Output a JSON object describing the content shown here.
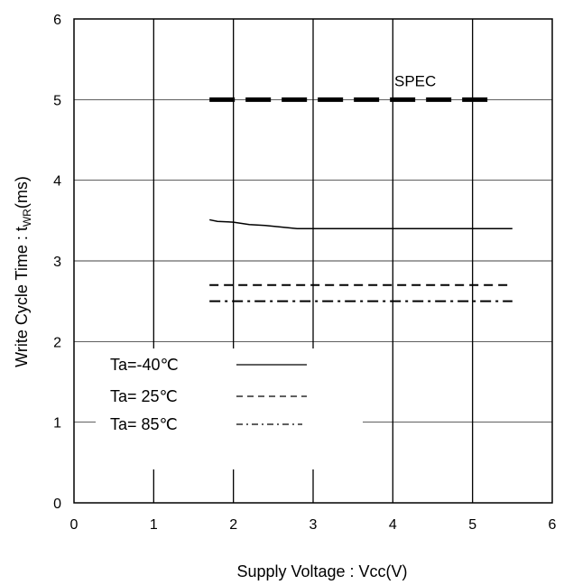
{
  "chart_data": {
    "type": "line",
    "xlabel": "Supply Voltage : Vcc(V)",
    "ylabel_main": "Write Cycle Time : t",
    "ylabel_sub": "WR",
    "ylabel_unit": "(ms)",
    "xlim": [
      0,
      6
    ],
    "ylim": [
      0,
      6
    ],
    "x_ticks": [
      "0",
      "1",
      "2",
      "3",
      "4",
      "5",
      "6"
    ],
    "y_ticks": [
      "0",
      "1",
      "2",
      "3",
      "4",
      "5",
      "6"
    ],
    "grid": true,
    "legend_position": "lower-left",
    "series": [
      {
        "name": "Ta=-40℃",
        "style": "solid",
        "x": [
          1.7,
          1.8,
          2.0,
          2.2,
          2.4,
          2.6,
          2.8,
          3.0,
          3.5,
          4.0,
          4.5,
          5.0,
          5.5
        ],
        "y": [
          3.51,
          3.49,
          3.48,
          3.45,
          3.44,
          3.42,
          3.4,
          3.4,
          3.4,
          3.4,
          3.4,
          3.4,
          3.4
        ]
      },
      {
        "name": "Ta= 25℃",
        "style": "dashed",
        "x": [
          1.7,
          5.5
        ],
        "y": [
          2.7,
          2.7
        ]
      },
      {
        "name": "Ta= 85℃",
        "style": "dashdot",
        "x": [
          1.7,
          5.5
        ],
        "y": [
          2.5,
          2.5
        ]
      }
    ],
    "spec": {
      "label": "SPEC",
      "x": [
        1.7,
        5.3
      ],
      "y": 5.0
    }
  }
}
